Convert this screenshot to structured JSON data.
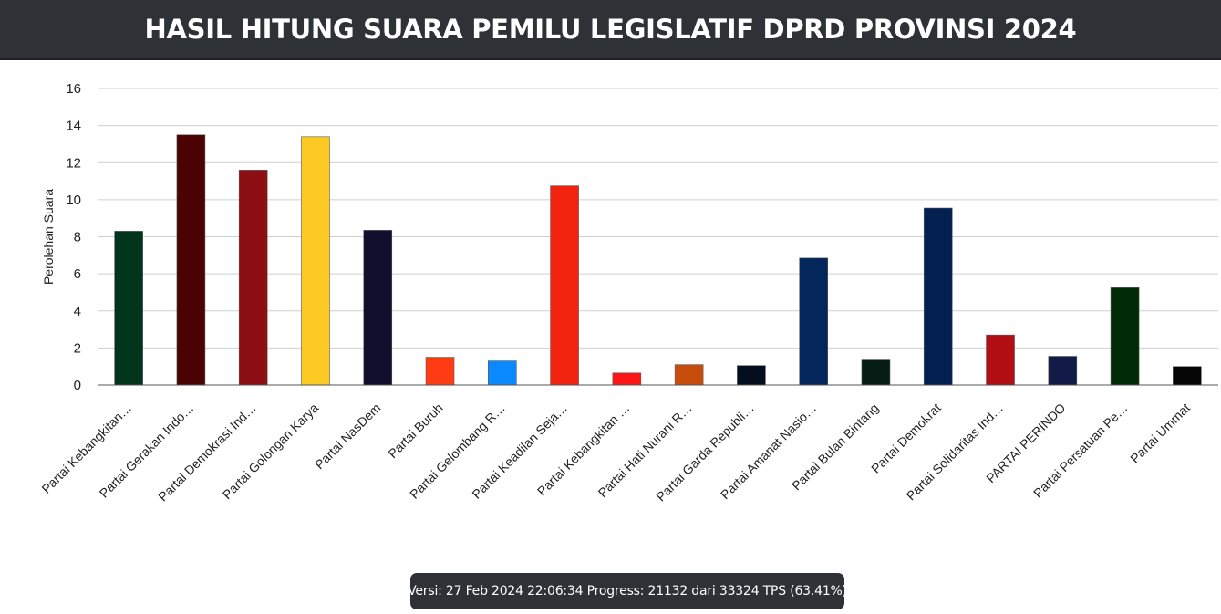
{
  "header": {
    "title": "HASIL HITUNG SUARA PEMILU LEGISLATIF DPRD PROVINSI 2024"
  },
  "status": {
    "text": "Versi: 27 Feb 2024 22:06:34 Progress: 21132 dari 33324 TPS (63.41%)"
  },
  "chart_data": {
    "type": "bar",
    "title": "",
    "xlabel": "",
    "ylabel": "Perolehan Suara",
    "ylim": [
      0,
      16
    ],
    "yticks": [
      0,
      2,
      4,
      6,
      8,
      10,
      12,
      14,
      16
    ],
    "grid": true,
    "legend": "none",
    "categories": [
      "Partai Kebangkitan…",
      "Partai Gerakan Indo…",
      "Partai Demokrasi Ind…",
      "Partai Golongan Karya",
      "Partai NasDem",
      "Partai Buruh",
      "Partai Gelombang R…",
      "Partai Keadilan Seja…",
      "Partai Kebangkitan …",
      "Partai Hati Nurani R…",
      "Partai Garda Republi…",
      "Partai Amanat Nasio…",
      "Partai Bulan Bintang",
      "Partai Demokrat",
      "Partai Solidaritas Ind…",
      "PARTAI PERINDO",
      "Partai Persatuan Pe…",
      "Partai Ummat"
    ],
    "values": [
      8.3,
      13.5,
      11.6,
      13.4,
      8.35,
      1.5,
      1.3,
      10.75,
      0.65,
      1.1,
      1.05,
      6.85,
      1.35,
      9.55,
      2.7,
      1.55,
      5.25,
      1.0
    ],
    "colors": [
      "#01341c",
      "#4a0204",
      "#8e0f13",
      "#fdc923",
      "#100f2e",
      "#fe3c14",
      "#0b8aff",
      "#f22410",
      "#fd1617",
      "#c74d0c",
      "#050e1e",
      "#03275a",
      "#051c14",
      "#042052",
      "#b10f14",
      "#121b47",
      "#012a07",
      "#050505"
    ]
  }
}
